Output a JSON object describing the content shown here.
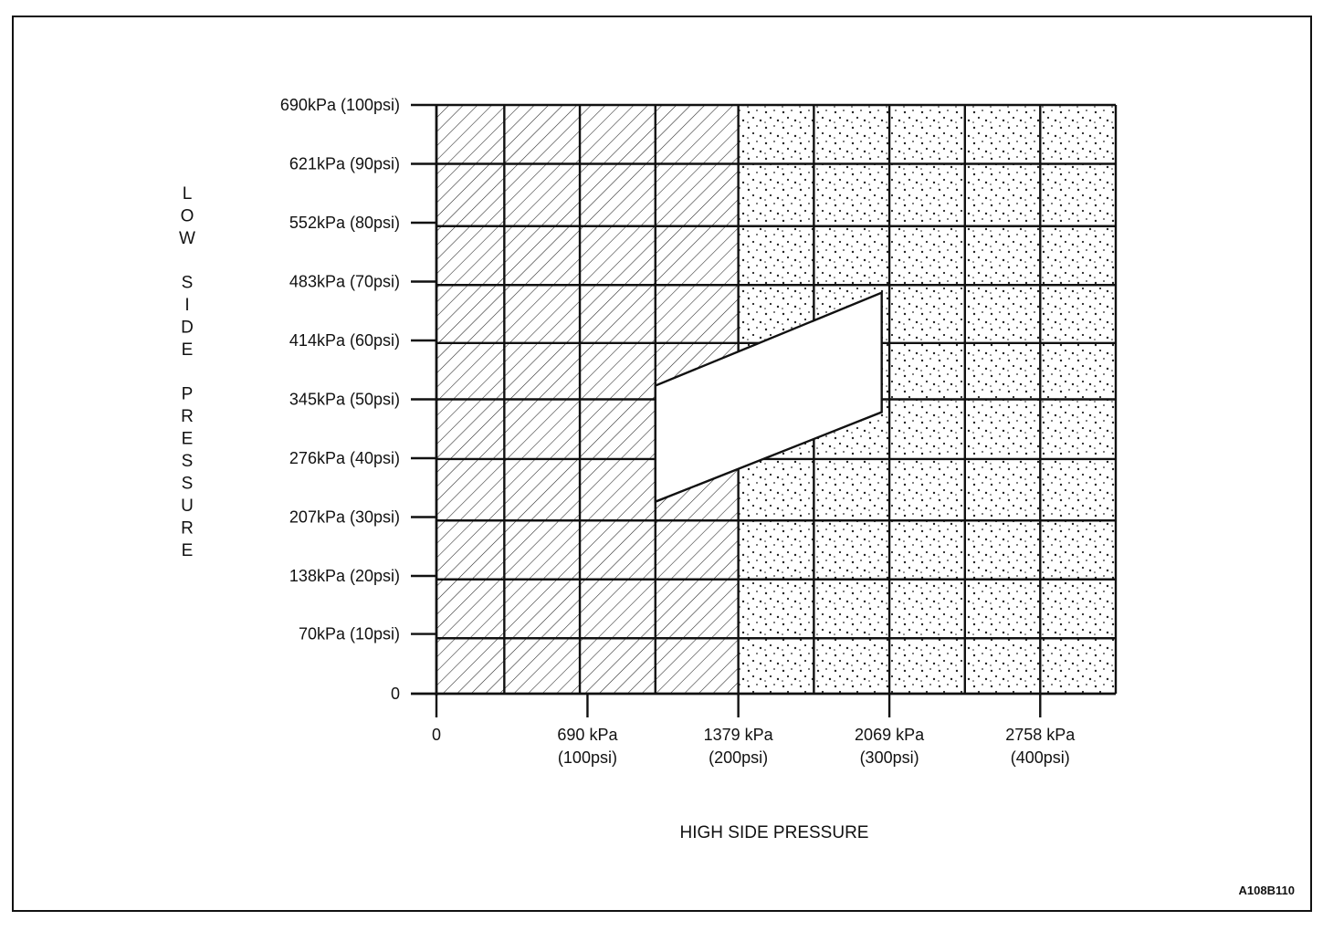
{
  "chart_data": {
    "type": "area",
    "title": "",
    "xlabel": "HIGH SIDE PRESSURE",
    "ylabel": "LOW SIDE PRESSURE",
    "x_unit": "kPa",
    "y_unit": "kPa",
    "xlim": [
      0,
      3103
    ],
    "ylim": [
      0,
      690
    ],
    "x_ticks": [
      {
        "value": 0,
        "line1": "0",
        "line2": ""
      },
      {
        "value": 690,
        "line1": "690 kPa",
        "line2": "(100psi)"
      },
      {
        "value": 1379,
        "line1": "1379 kPa",
        "line2": "(200psi)"
      },
      {
        "value": 2069,
        "line1": "2069 kPa",
        "line2": "(300psi)"
      },
      {
        "value": 2758,
        "line1": "2758 kPa",
        "line2": "(400psi)"
      }
    ],
    "y_ticks": [
      {
        "value": 0,
        "label": "0"
      },
      {
        "value": 70,
        "label": "70kPa (10psi)"
      },
      {
        "value": 138,
        "label": "138kPa (20psi)"
      },
      {
        "value": 207,
        "label": "207kPa (30psi)"
      },
      {
        "value": 276,
        "label": "276kPa (40psi)"
      },
      {
        "value": 345,
        "label": "345kPa (50psi)"
      },
      {
        "value": 414,
        "label": "414kPa (60psi)"
      },
      {
        "value": 483,
        "label": "483kPa (70psi)"
      },
      {
        "value": 552,
        "label": "552kPa (80psi)"
      },
      {
        "value": 621,
        "label": "621kPa (90psi)"
      },
      {
        "value": 690,
        "label": "690kPa (100psi)"
      }
    ],
    "grid": true,
    "grid_x": [
      0,
      310,
      655,
      1000,
      1379,
      1724,
      2069,
      2414,
      2758,
      3103
    ],
    "grid_y": [
      0,
      65,
      134,
      203,
      275,
      345,
      411,
      479,
      548,
      621,
      690
    ],
    "regions": [
      {
        "pattern": "hatched",
        "x_range": [
          0,
          1379
        ],
        "y_range": [
          0,
          690
        ]
      },
      {
        "pattern": "dotted",
        "x_range": [
          1379,
          3103
        ],
        "y_range": [
          0,
          690
        ]
      }
    ],
    "normal_range": {
      "polygon": [
        [
          1000,
          225
        ],
        [
          1000,
          361
        ],
        [
          2034,
          470
        ],
        [
          2034,
          330
        ]
      ]
    },
    "figure_code": "A108B110",
    "colors": {
      "line": "#111111",
      "background": "#ffffff",
      "normal_range_fill": "#ffffff"
    }
  }
}
